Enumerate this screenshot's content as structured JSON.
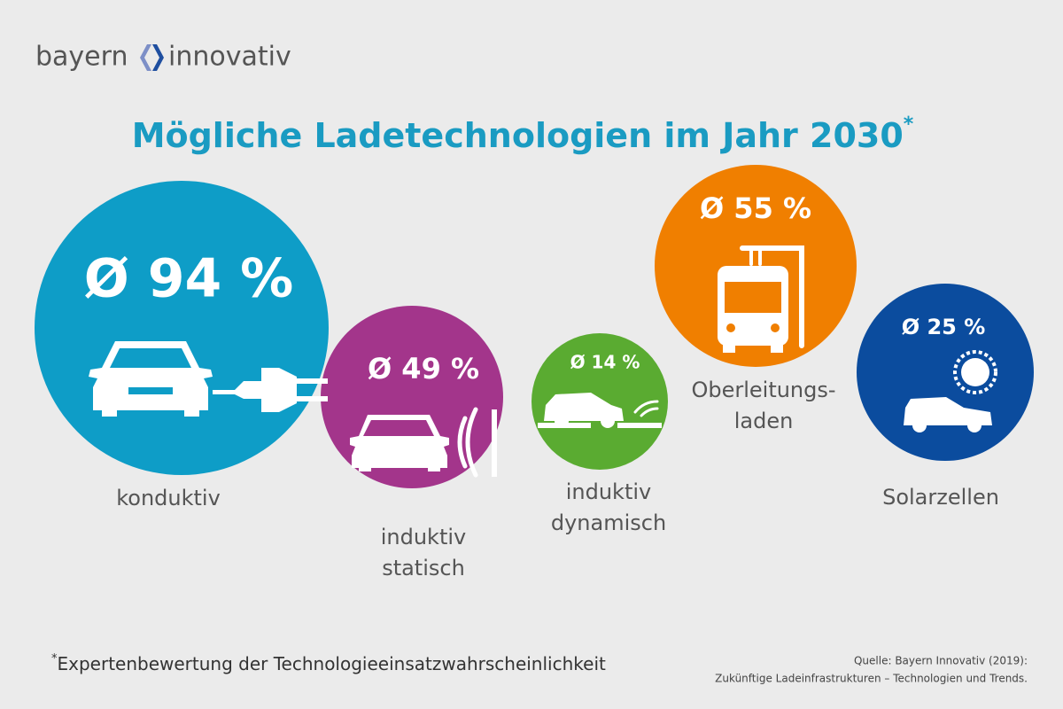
{
  "logo": {
    "left": "bayern",
    "right": "innovativ"
  },
  "footnote": {
    "marker": "*",
    "text": "Expertenbewertung der Technologieeinsatzwahrscheinlichkeit"
  },
  "source": [
    "Quelle: Bayern Innovativ (2019):",
    "Zukünftige Ladeinfrastrukturen – Technologien und Trends."
  ],
  "chart_data": {
    "type": "bubble",
    "title": "Mögliche Ladetechnologien im Jahr 2030",
    "title_marker": "*",
    "categories": [
      [
        "konduktiv"
      ],
      [
        "induktiv",
        "statisch"
      ],
      [
        "induktiv",
        "dynamisch"
      ],
      [
        "Oberleitungs-",
        "laden"
      ],
      [
        "Solarzellen"
      ]
    ],
    "values": [
      94,
      49,
      14,
      55,
      25
    ],
    "value_labels": [
      "Ø 94 %",
      "Ø 49 %",
      "Ø 14 %",
      "Ø 55 %",
      "Ø 25 %"
    ],
    "colors": [
      "#0e9dc7",
      "#a3358b",
      "#5aab31",
      "#f07f00",
      "#0b4c9e"
    ]
  }
}
